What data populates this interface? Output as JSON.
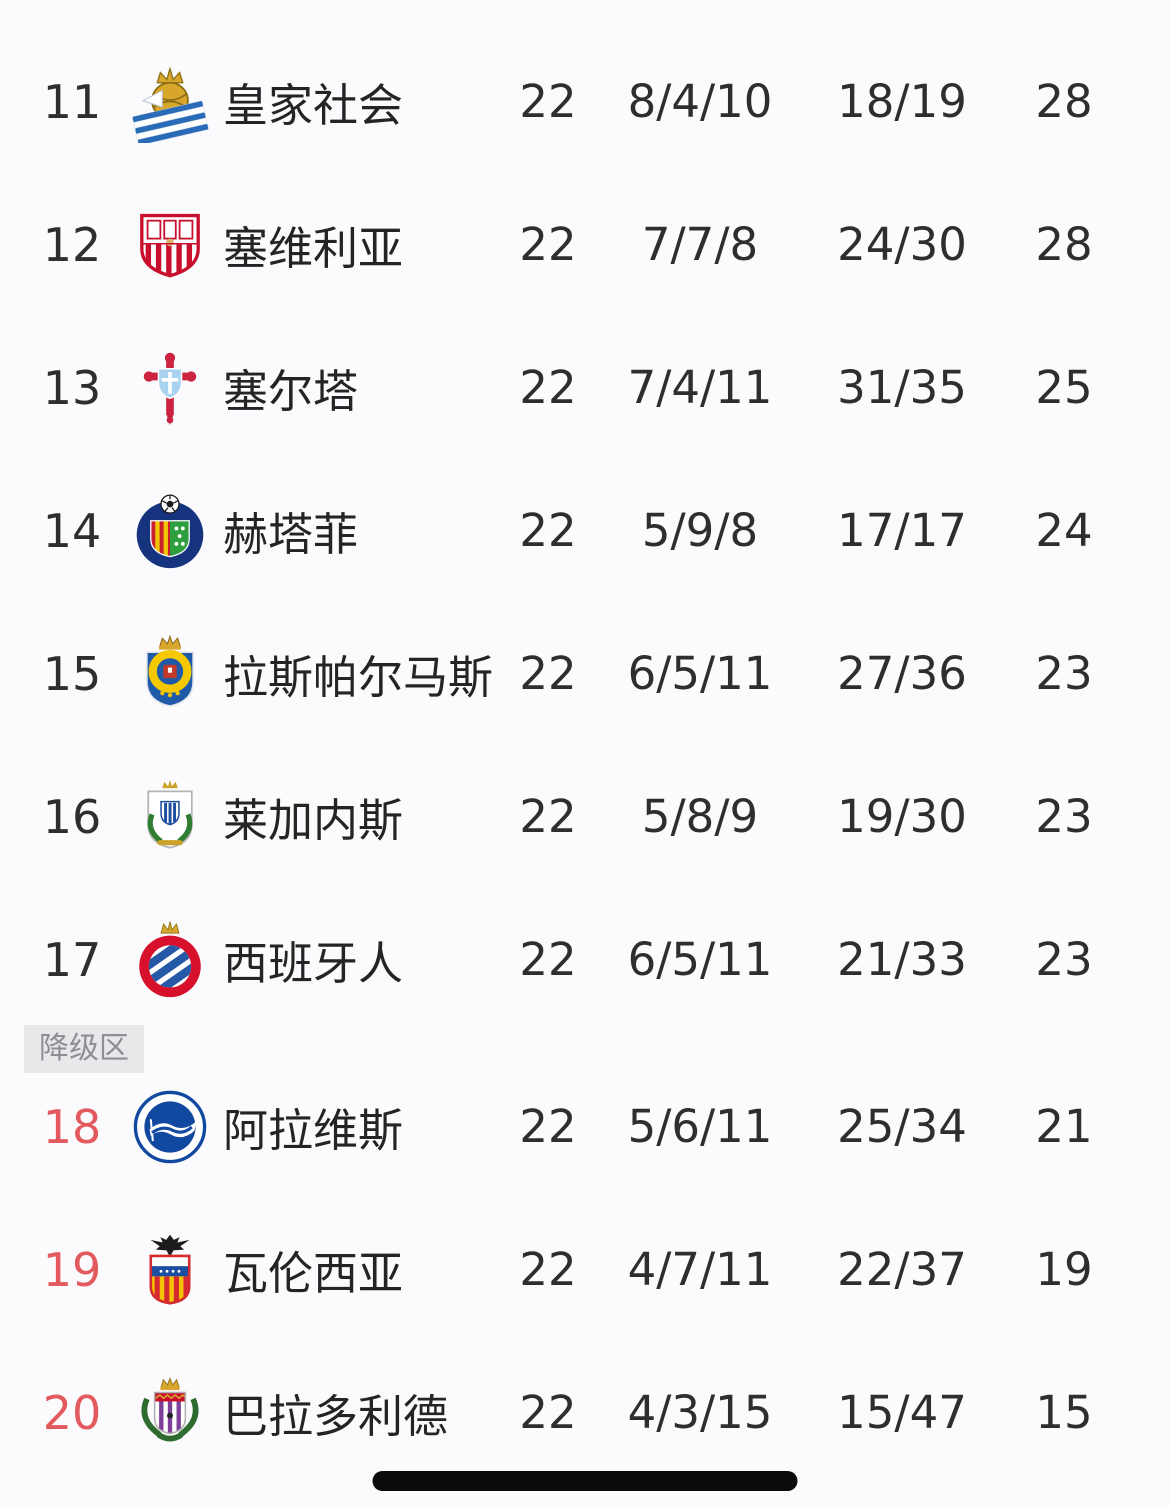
{
  "page": {
    "background": "#fbfbfd",
    "text_color": "#2e2e30",
    "relegation_rank_color": "#e25a5e",
    "badge": {
      "label": "降级区",
      "bg": "#e8e8ea",
      "text_color": "#8e8e93"
    }
  },
  "teams": [
    {
      "rank": "11",
      "name": "皇家社会",
      "played": "22",
      "record": "8/4/10",
      "goals": "18/19",
      "points": "28",
      "relegation": false,
      "crest": {
        "icon": "real-sociedad-crest-icon",
        "style": "sociedad",
        "colors": [
          "#d8a62a",
          "#2a6bb8",
          "#ffffff",
          "#8c6d14"
        ]
      }
    },
    {
      "rank": "12",
      "name": "塞维利亚",
      "played": "22",
      "record": "7/7/8",
      "goals": "24/30",
      "points": "28",
      "relegation": false,
      "crest": {
        "icon": "sevilla-crest-icon",
        "style": "sevilla",
        "colors": [
          "#ffffff",
          "#c8102e",
          "#d7b56a",
          "#f5e9d0"
        ]
      }
    },
    {
      "rank": "13",
      "name": "塞尔塔",
      "played": "22",
      "record": "7/4/11",
      "goals": "31/35",
      "points": "25",
      "relegation": false,
      "crest": {
        "icon": "celta-crest-icon",
        "style": "celta",
        "colors": [
          "#cc2340",
          "#a8d2f0",
          "#ffffff",
          "#9c1830"
        ]
      }
    },
    {
      "rank": "14",
      "name": "赫塔菲",
      "played": "22",
      "record": "5/9/8",
      "goals": "17/17",
      "points": "24",
      "relegation": false,
      "crest": {
        "icon": "getafe-crest-icon",
        "style": "getafe",
        "colors": [
          "#16337e",
          "#2f9e3f",
          "#c81e2e",
          "#f2c500"
        ]
      }
    },
    {
      "rank": "15",
      "name": "拉斯帕尔马斯",
      "played": "22",
      "record": "6/5/11",
      "goals": "27/36",
      "points": "23",
      "relegation": false,
      "crest": {
        "icon": "las-palmas-crest-icon",
        "style": "laspalmas",
        "colors": [
          "#1f5aa8",
          "#f5c800",
          "#c0392b",
          "#d9a62e"
        ]
      }
    },
    {
      "rank": "16",
      "name": "莱加内斯",
      "played": "22",
      "record": "5/8/9",
      "goals": "19/30",
      "points": "23",
      "relegation": false,
      "crest": {
        "icon": "leganes-crest-icon",
        "style": "leganes",
        "colors": [
          "#ffffff",
          "#2e7d32",
          "#1d4fa0",
          "#c9a227"
        ]
      }
    },
    {
      "rank": "17",
      "name": "西班牙人",
      "played": "22",
      "record": "6/5/11",
      "goals": "21/33",
      "points": "23",
      "relegation": false,
      "crest": {
        "icon": "espanyol-crest-icon",
        "style": "espanyol",
        "colors": [
          "#d7102c",
          "#2558a7",
          "#ffffff",
          "#d9a62e"
        ]
      }
    },
    {
      "rank": "18",
      "name": "阿拉维斯",
      "played": "22",
      "record": "5/6/11",
      "goals": "25/34",
      "points": "21",
      "relegation": true,
      "crest": {
        "icon": "alaves-crest-icon",
        "style": "alaves",
        "colors": [
          "#1148a0",
          "#ffffff",
          "#0d3a85",
          "#ffffff"
        ]
      }
    },
    {
      "rank": "19",
      "name": "瓦伦西亚",
      "played": "22",
      "record": "4/7/11",
      "goals": "22/37",
      "points": "19",
      "relegation": true,
      "crest": {
        "icon": "valencia-crest-icon",
        "style": "valencia",
        "colors": [
          "#f4c300",
          "#d42a30",
          "#1d4fa0",
          "#1c1c1e"
        ]
      }
    },
    {
      "rank": "20",
      "name": "巴拉多利德",
      "played": "22",
      "record": "4/3/15",
      "goals": "15/47",
      "points": "15",
      "relegation": true,
      "crest": {
        "icon": "valladolid-crest-icon",
        "style": "valladolid",
        "colors": [
          "#7d3f98",
          "#2e6b2f",
          "#d9a62e",
          "#c8102e"
        ]
      }
    }
  ]
}
